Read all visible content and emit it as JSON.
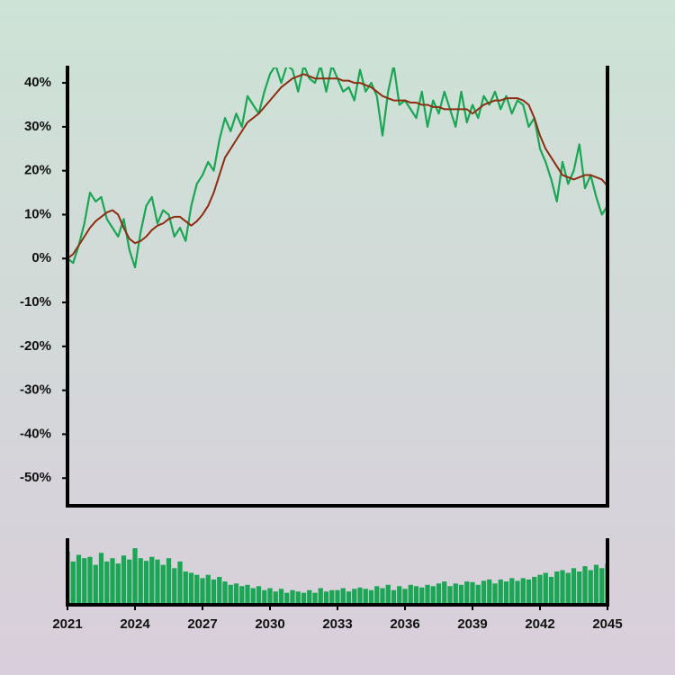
{
  "chart_data": [
    {
      "type": "line",
      "x": [
        2021,
        2021.25,
        2021.5,
        2021.75,
        2022,
        2022.25,
        2022.5,
        2022.75,
        2023,
        2023.25,
        2023.5,
        2023.75,
        2024,
        2024.25,
        2024.5,
        2024.75,
        2025,
        2025.25,
        2025.5,
        2025.75,
        2026,
        2026.25,
        2026.5,
        2026.75,
        2027,
        2027.25,
        2027.5,
        2027.75,
        2028,
        2028.25,
        2028.5,
        2028.75,
        2029,
        2029.25,
        2029.5,
        2029.75,
        2030,
        2030.25,
        2030.5,
        2030.75,
        2031,
        2031.25,
        2031.5,
        2031.75,
        2032,
        2032.25,
        2032.5,
        2032.75,
        2033,
        2033.25,
        2033.5,
        2033.75,
        2034,
        2034.25,
        2034.5,
        2034.75,
        2035,
        2035.25,
        2035.5,
        2035.75,
        2036,
        2036.25,
        2036.5,
        2036.75,
        2037,
        2037.25,
        2037.5,
        2037.75,
        2038,
        2038.25,
        2038.5,
        2038.75,
        2039,
        2039.25,
        2039.5,
        2039.75,
        2040,
        2040.25,
        2040.5,
        2040.75,
        2041,
        2041.25,
        2041.5,
        2041.75,
        2042,
        2042.25,
        2042.5,
        2042.75,
        2043,
        2043.25,
        2043.5,
        2043.75,
        2044,
        2044.25,
        2044.5,
        2044.75,
        2045
      ],
      "series": [
        {
          "color": "#1aa654",
          "width": 2.2,
          "values": [
            0,
            -1,
            3,
            8,
            15,
            13,
            14,
            9,
            7,
            5,
            9,
            2,
            -2,
            6,
            12,
            14,
            8,
            11,
            10,
            5,
            7,
            4,
            12,
            17,
            19,
            22,
            20,
            27,
            32,
            29,
            33,
            30,
            37,
            35,
            33,
            38,
            42,
            44,
            40,
            44,
            43,
            38,
            44,
            41,
            40,
            44,
            38,
            44,
            41,
            38,
            39,
            36,
            43,
            38,
            40,
            37,
            28,
            38,
            44,
            35,
            36,
            34,
            32,
            38,
            30,
            36,
            33,
            38,
            34,
            30,
            38,
            31,
            35,
            32,
            37,
            35,
            38,
            34,
            37,
            33,
            36,
            35,
            30,
            32,
            25,
            22,
            18,
            13,
            22,
            17,
            20,
            26,
            16,
            19,
            14,
            10,
            12
          ]
        },
        {
          "color": "#8b2e12",
          "width": 2,
          "values": [
            0,
            1,
            3,
            5,
            7,
            8.5,
            9.5,
            10.5,
            11,
            10,
            7,
            4.5,
            3.5,
            4,
            5,
            6.5,
            7.5,
            8,
            9,
            9.5,
            9.5,
            8.5,
            7.5,
            8.5,
            10,
            12,
            15,
            19,
            23,
            25,
            27,
            29,
            31,
            32,
            33,
            34.5,
            36,
            37.5,
            39,
            40,
            41,
            41.5,
            42,
            41.5,
            41,
            41,
            41,
            41,
            41,
            40.5,
            40.5,
            40,
            40,
            39.5,
            39,
            38,
            37,
            36.5,
            36,
            36,
            36,
            35.5,
            35.5,
            35,
            35,
            34.5,
            34.5,
            34,
            34,
            34,
            34,
            34,
            33,
            34,
            35,
            35.5,
            36,
            36,
            36.5,
            36.5,
            36.5,
            36,
            35,
            32,
            28,
            25,
            23,
            21,
            19,
            18.5,
            18,
            18.5,
            19,
            19,
            18.5,
            18,
            16.5
          ]
        }
      ],
      "xlim": [
        2021,
        2045
      ],
      "ylim": [
        -56.3,
        43.5
      ],
      "yticks": [
        {
          "value": 40,
          "label": "40%"
        },
        {
          "value": 30,
          "label": "30%"
        },
        {
          "value": 20,
          "label": "20%"
        },
        {
          "value": 10,
          "label": "10%"
        },
        {
          "value": 0,
          "label": "0%"
        },
        {
          "value": -10,
          "label": "-10%"
        },
        {
          "value": -20,
          "label": "-20%"
        },
        {
          "value": -30,
          "label": "-30%"
        },
        {
          "value": -40,
          "label": "-40%"
        },
        {
          "value": -50,
          "label": "-50%"
        }
      ]
    },
    {
      "type": "bar",
      "color": "#1aa654",
      "x": [
        2021,
        2021.25,
        2021.5,
        2021.75,
        2022,
        2022.25,
        2022.5,
        2022.75,
        2023,
        2023.25,
        2023.5,
        2023.75,
        2024,
        2024.25,
        2024.5,
        2024.75,
        2025,
        2025.25,
        2025.5,
        2025.75,
        2026,
        2026.25,
        2026.5,
        2026.75,
        2027,
        2027.25,
        2027.5,
        2027.75,
        2028,
        2028.25,
        2028.5,
        2028.75,
        2029,
        2029.25,
        2029.5,
        2029.75,
        2030,
        2030.25,
        2030.5,
        2030.75,
        2031,
        2031.25,
        2031.5,
        2031.75,
        2032,
        2032.25,
        2032.5,
        2032.75,
        2033,
        2033.25,
        2033.5,
        2033.75,
        2034,
        2034.25,
        2034.5,
        2034.75,
        2035,
        2035.25,
        2035.5,
        2035.75,
        2036,
        2036.25,
        2036.5,
        2036.75,
        2037,
        2037.25,
        2037.5,
        2037.75,
        2038,
        2038.25,
        2038.5,
        2038.75,
        2039,
        2039.25,
        2039.5,
        2039.75,
        2040,
        2040.25,
        2040.5,
        2040.75,
        2041,
        2041.25,
        2041.5,
        2041.75,
        2042,
        2042.25,
        2042.5,
        2042.75,
        2043,
        2043.25,
        2043.5,
        2043.75,
        2044,
        2044.25,
        2044.5,
        2044.75,
        2045
      ],
      "values": [
        80,
        65,
        75,
        70,
        72,
        60,
        78,
        65,
        70,
        62,
        74,
        68,
        85,
        70,
        66,
        72,
        68,
        60,
        70,
        55,
        65,
        50,
        48,
        45,
        40,
        45,
        38,
        42,
        35,
        30,
        32,
        28,
        30,
        25,
        28,
        22,
        25,
        20,
        24,
        18,
        22,
        20,
        18,
        22,
        18,
        25,
        20,
        22,
        22,
        25,
        20,
        24,
        26,
        24,
        22,
        28,
        25,
        30,
        22,
        28,
        24,
        30,
        28,
        26,
        30,
        28,
        32,
        35,
        28,
        32,
        30,
        35,
        34,
        30,
        36,
        38,
        32,
        38,
        35,
        40,
        36,
        40,
        38,
        42,
        45,
        48,
        42,
        50,
        52,
        48,
        55,
        50,
        58,
        52,
        60,
        55,
        62
      ],
      "xlim": [
        2021,
        2045
      ],
      "ylim": [
        0,
        100
      ],
      "xticks": [
        2021,
        2024,
        2027,
        2030,
        2033,
        2036,
        2039,
        2042,
        2045
      ]
    }
  ]
}
